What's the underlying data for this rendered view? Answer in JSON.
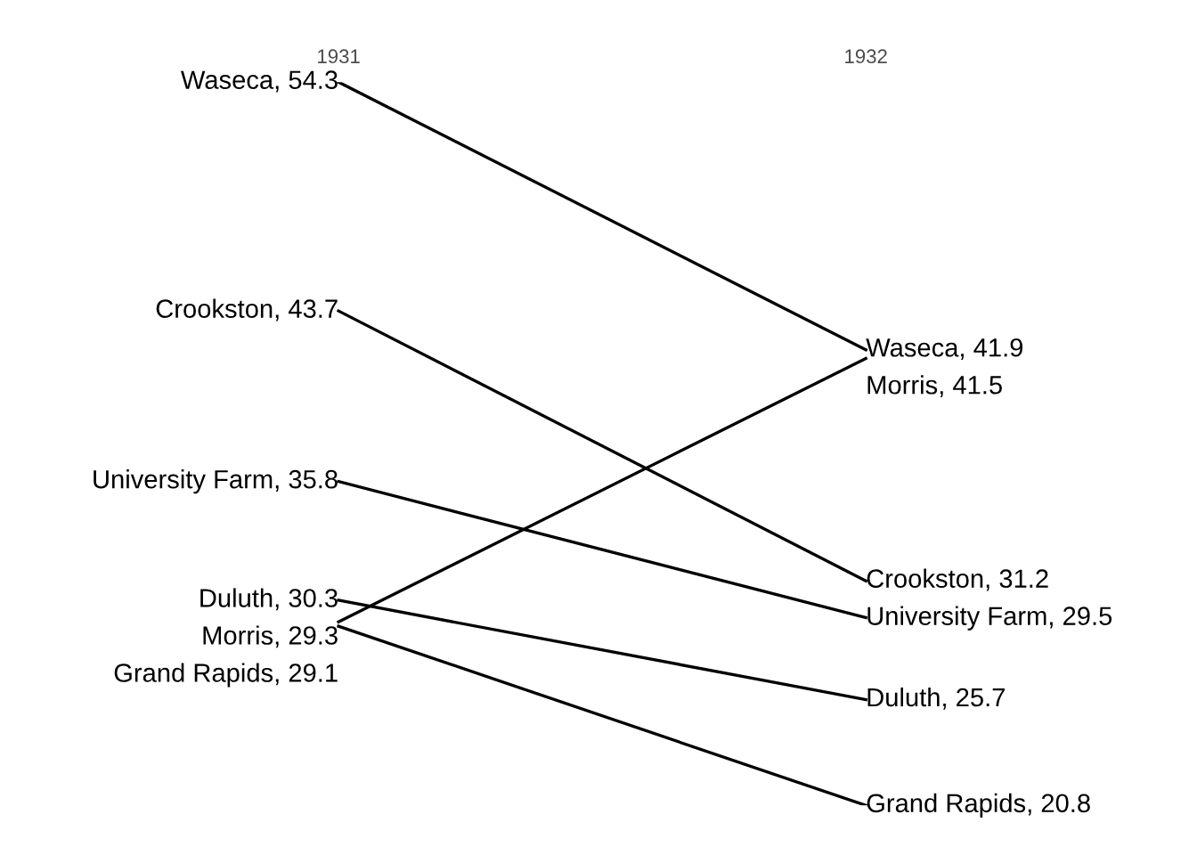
{
  "chart_data": {
    "type": "line",
    "categories": [
      "1931",
      "1932"
    ],
    "series": [
      {
        "color": "#000000",
        "values": [
          54.3,
          41.9
        ],
        "value_labels": [
          "Waseca, 54.3",
          "Waseca, 41.9"
        ]
      },
      {
        "color": "#000000",
        "values": [
          43.7,
          31.2
        ],
        "value_labels": [
          "Crookston, 43.7",
          "Crookston, 31.2"
        ]
      },
      {
        "color": "#000000",
        "values": [
          35.8,
          29.5
        ],
        "value_labels": [
          "University Farm, 35.8",
          "University Farm, 29.5"
        ]
      },
      {
        "color": "#000000",
        "values": [
          30.3,
          25.7
        ],
        "value_labels": [
          "Duluth, 30.3",
          "Duluth, 25.7"
        ]
      },
      {
        "color": "#000000",
        "values": [
          29.3,
          41.5
        ],
        "value_labels": [
          "Morris, 29.3",
          "Morris, 41.5"
        ]
      },
      {
        "color": "#000000",
        "values": [
          29.1,
          20.8
        ],
        "value_labels": [
          "Grand Rapids, 29.1",
          "Grand Rapids, 20.8"
        ]
      }
    ]
  }
}
